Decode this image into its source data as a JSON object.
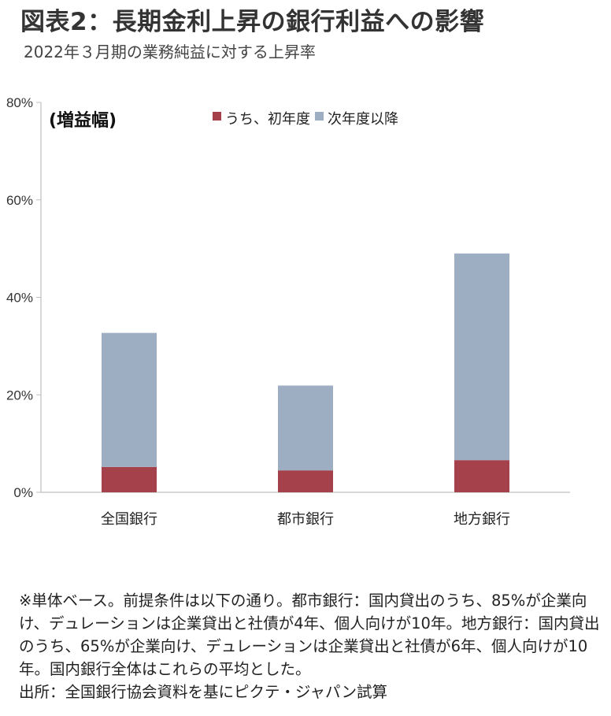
{
  "header": {
    "title": "図表2：長期金利上昇の銀行利益への影響",
    "subtitle": "2022年３月期の業務純益に対する上昇率"
  },
  "chart_data": {
    "type": "bar",
    "stacked": true,
    "categories": [
      "全国銀行",
      "都市銀行",
      "地方銀行"
    ],
    "series": [
      {
        "name": "うち、初年度",
        "values": [
          5.2,
          4.5,
          6.6
        ],
        "color": "#A5414A"
      },
      {
        "name": "次年度以降",
        "values": [
          27.5,
          17.4,
          42.4
        ],
        "color": "#9EAEC2"
      }
    ],
    "ylabel": "(増益幅)",
    "ylim": [
      0,
      80
    ],
    "yticks": [
      "0%",
      "20%",
      "40%",
      "60%",
      "80%"
    ],
    "grid": false,
    "legend_position": "top"
  },
  "notes": [
    "※単体ベース。前提条件は以下の通り。都市銀行：国内貸出のうち、85%が企業向け、デュレーションは企業貸出と社債が4年、個人向けが10年。地方銀行：国内貸出のうち、65%が企業向け、デュレーションは企業貸出と社債が6年、個人向けが10年。国内銀行全体はこれらの平均とした。",
    "出所：全国銀行協会資料を基にピクテ・ジャパン試算"
  ]
}
